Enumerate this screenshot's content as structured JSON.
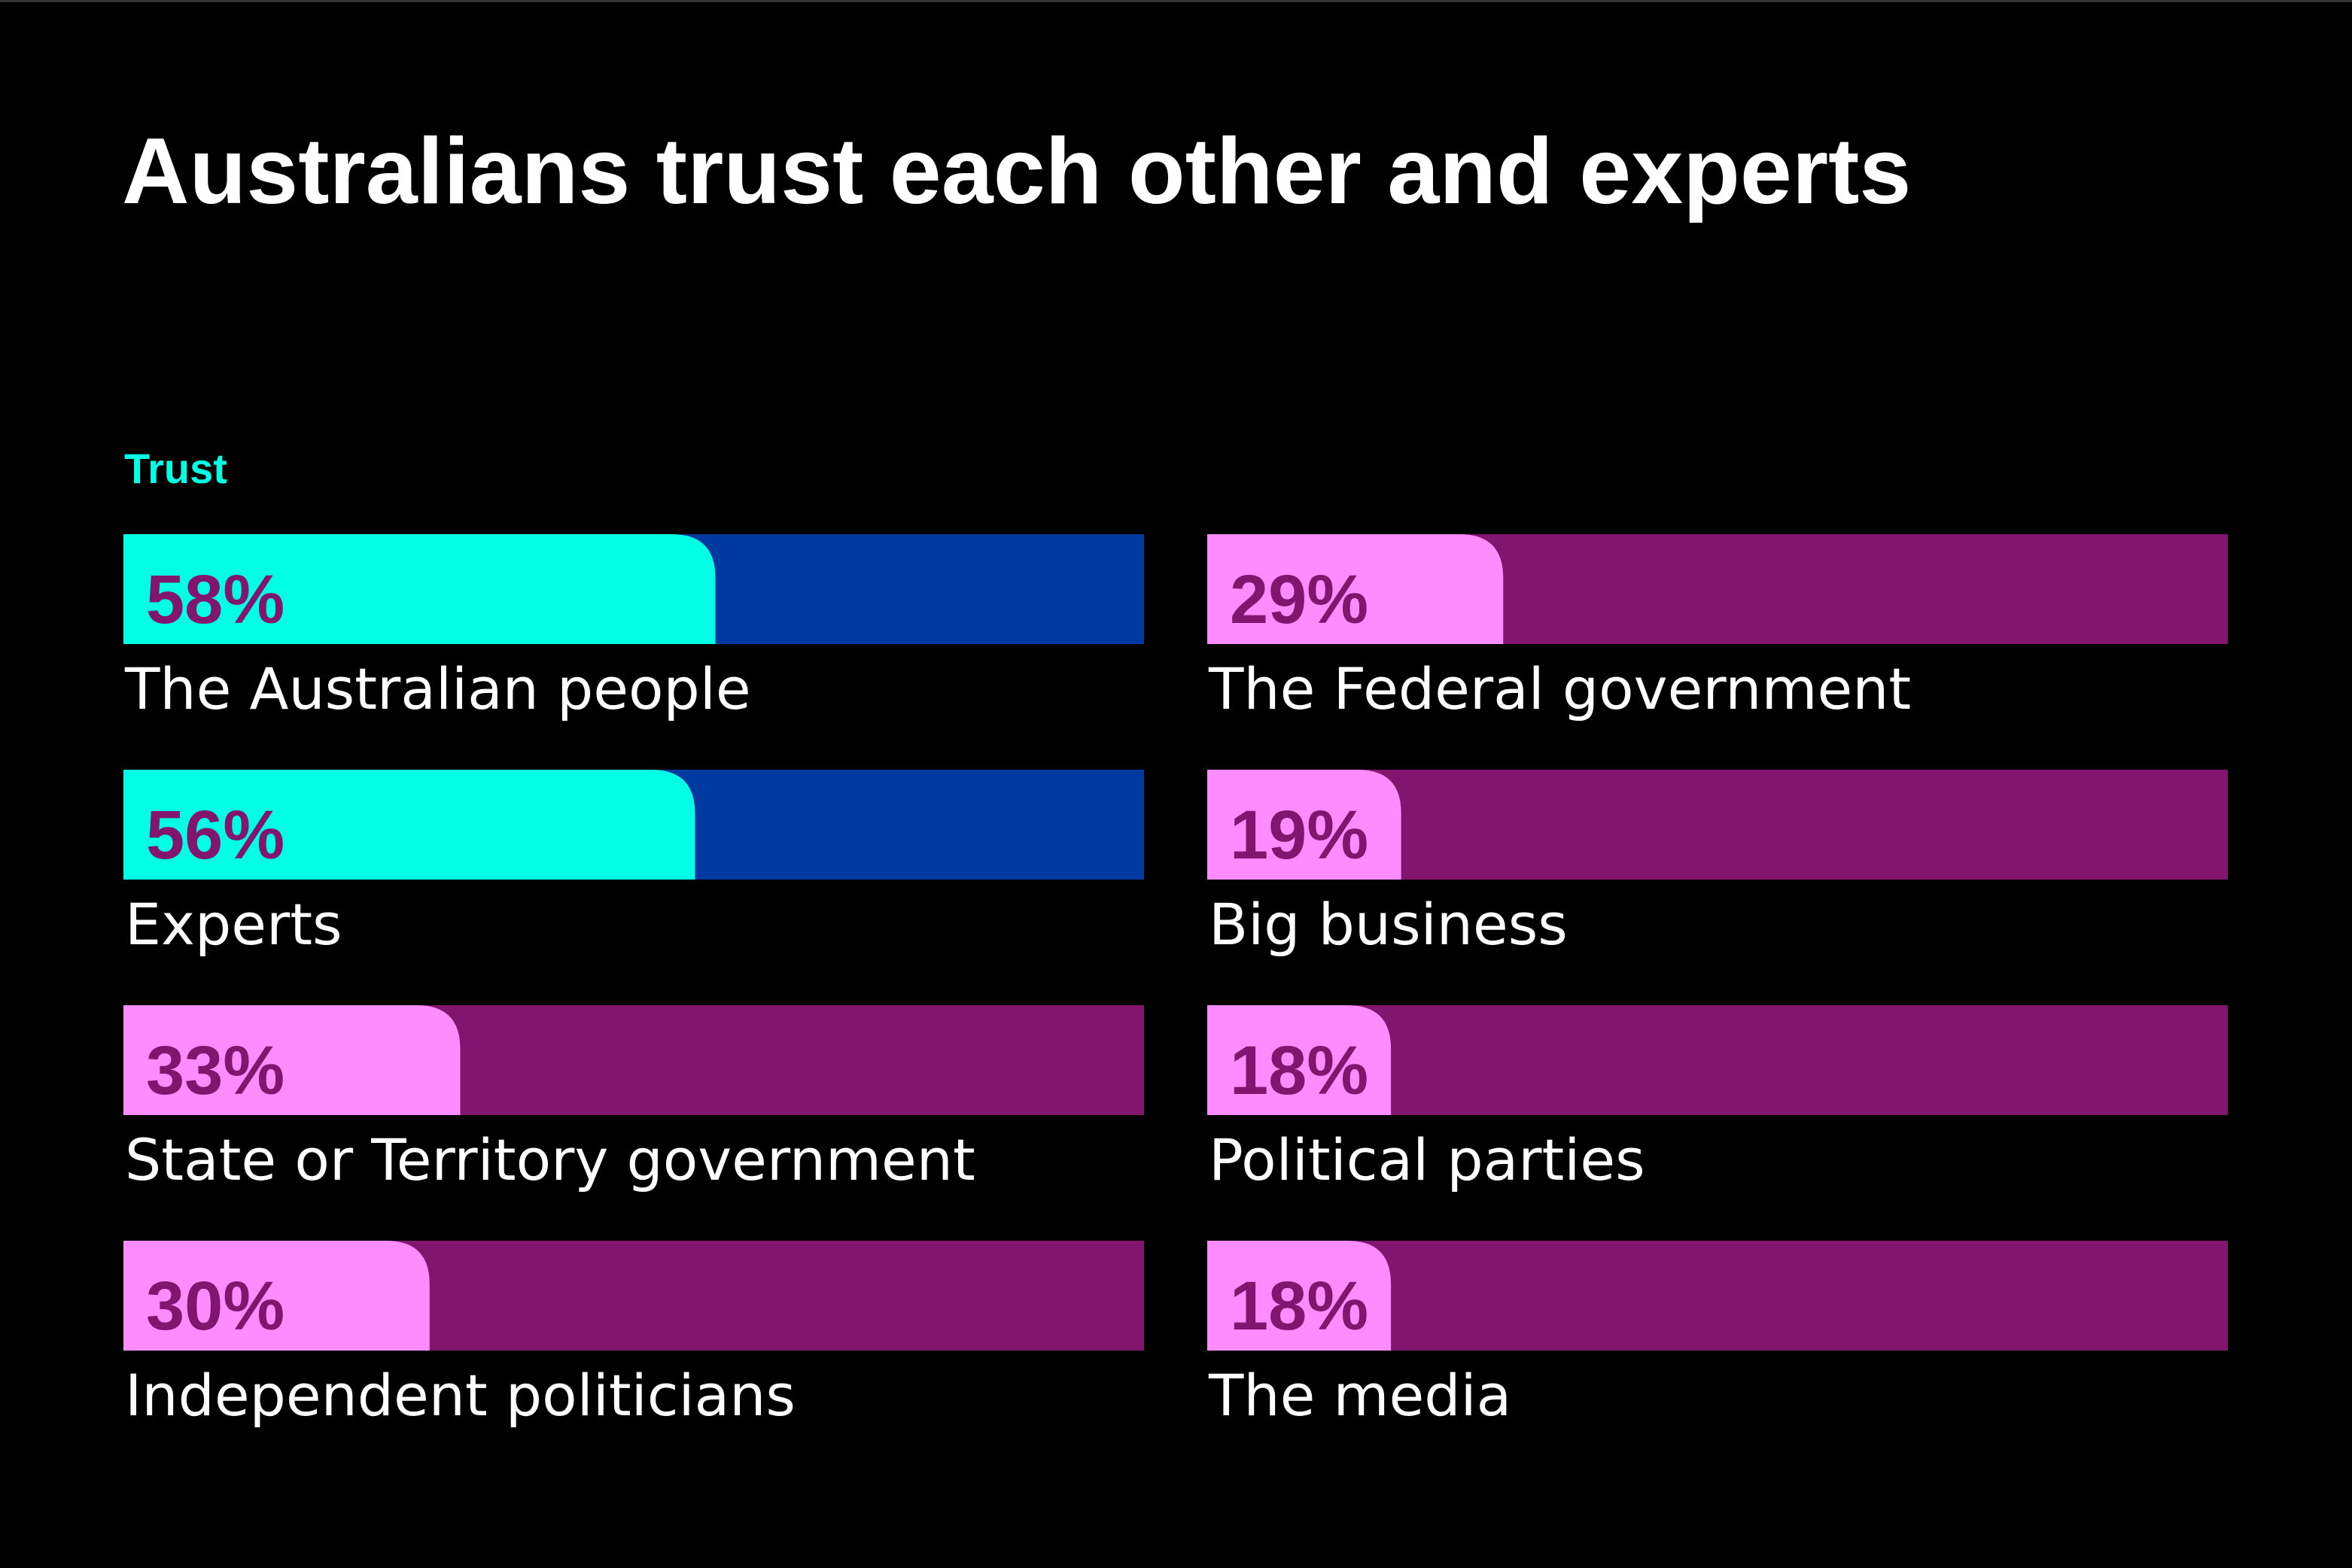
{
  "chart_data": {
    "type": "bar",
    "title": "Australians trust each other and experts",
    "legend": {
      "label": "Trust",
      "position": "top-left"
    },
    "ylim": [
      0,
      100
    ],
    "unit": "%",
    "colors": {
      "background": "#000000",
      "highlight_fill": "#00FFE5",
      "highlight_track": "#0039A0",
      "regular_fill": "#FF8CFF",
      "regular_track": "#82166E",
      "value_text": "#82166E",
      "legend_text": "#00FFE5",
      "label_text": "#FFFFFF"
    },
    "columns": [
      {
        "items": [
          {
            "category": "The Australian people",
            "value": 58,
            "value_label": "58%",
            "highlight": true
          },
          {
            "category": "Experts",
            "value": 56,
            "value_label": "56%",
            "highlight": true
          },
          {
            "category": "State or Territory government",
            "value": 33,
            "value_label": "33%",
            "highlight": false
          },
          {
            "category": "Independent politicians",
            "value": 30,
            "value_label": "30%",
            "highlight": false
          }
        ]
      },
      {
        "items": [
          {
            "category": "The Federal government",
            "value": 29,
            "value_label": "29%",
            "highlight": false
          },
          {
            "category": "Big business",
            "value": 19,
            "value_label": "19%",
            "highlight": false
          },
          {
            "category": "Political parties",
            "value": 18,
            "value_label": "18%",
            "highlight": false
          },
          {
            "category": "The media",
            "value": 18,
            "value_label": "18%",
            "highlight": false
          }
        ]
      }
    ]
  }
}
